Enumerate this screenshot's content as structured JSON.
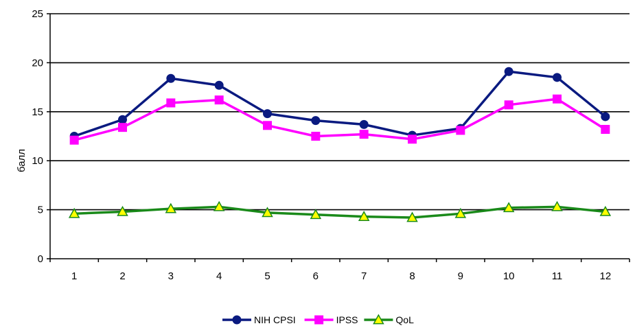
{
  "chart_data": {
    "type": "line",
    "ylabel": "балл",
    "xlabel": "",
    "ylim": [
      0,
      25
    ],
    "yticks": [
      0,
      5,
      10,
      15,
      20,
      25
    ],
    "grid": "horizontal",
    "legend_position": "bottom",
    "categories": [
      "1",
      "2",
      "3",
      "4",
      "5",
      "6",
      "7",
      "8",
      "9",
      "10",
      "11",
      "12"
    ],
    "series": [
      {
        "name": "NIH CPSI",
        "color": "#0a1a80",
        "marker": "circle",
        "values": [
          12.5,
          14.2,
          18.4,
          17.7,
          14.8,
          14.1,
          13.7,
          12.6,
          13.3,
          19.1,
          18.5,
          14.5
        ]
      },
      {
        "name": "IPSS",
        "color": "#ff00ff",
        "marker": "square",
        "values": [
          12.1,
          13.4,
          15.9,
          16.2,
          13.6,
          12.5,
          12.7,
          12.2,
          13.1,
          15.7,
          16.3,
          13.2
        ]
      },
      {
        "name": "QoL",
        "color": "#1a8a1a",
        "marker": "triangle",
        "marker_fill": "#ffff00",
        "values": [
          4.6,
          4.8,
          5.1,
          5.3,
          4.7,
          4.5,
          4.3,
          4.2,
          4.6,
          5.2,
          5.3,
          4.8
        ]
      }
    ]
  }
}
